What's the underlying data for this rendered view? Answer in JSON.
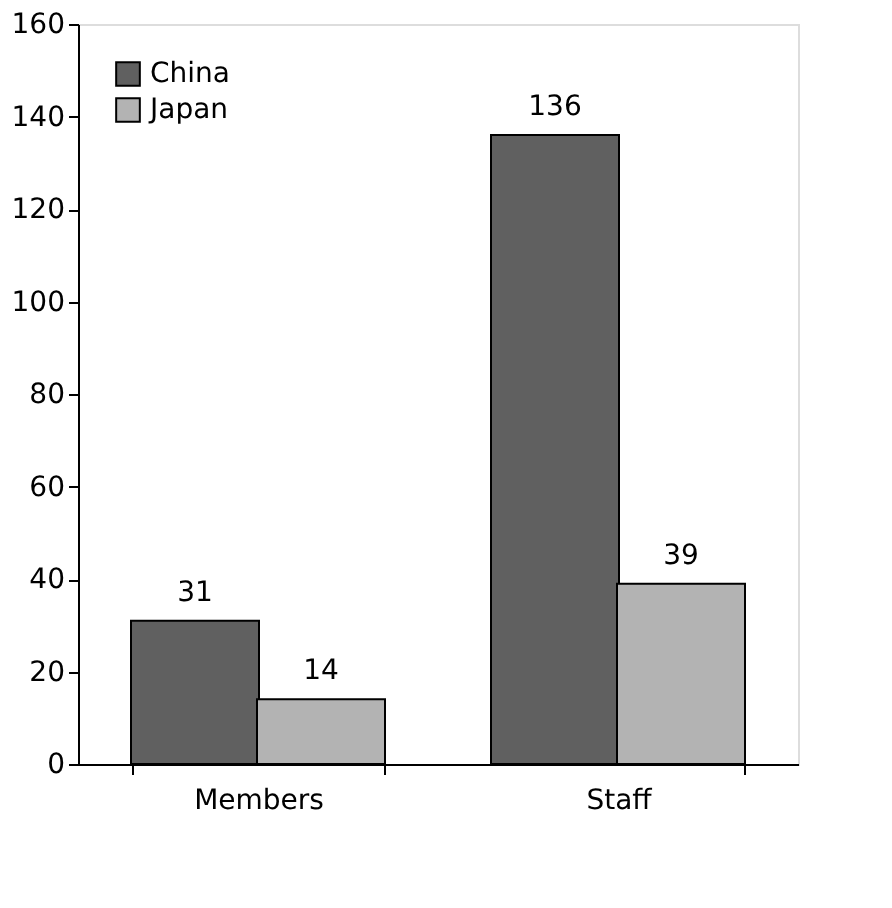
{
  "chart_data": {
    "type": "bar",
    "categories": [
      "Members",
      "Staff"
    ],
    "series": [
      {
        "name": "China",
        "color": "#606060",
        "values": [
          31,
          136
        ]
      },
      {
        "name": "Japan",
        "color": "#b3b3b3",
        "values": [
          14,
          39
        ]
      }
    ],
    "ylim": [
      0,
      160
    ],
    "yticks": [
      0,
      20,
      40,
      60,
      80,
      100,
      120,
      140,
      160
    ],
    "grid": false,
    "legend": "top left",
    "data_labels": true
  }
}
